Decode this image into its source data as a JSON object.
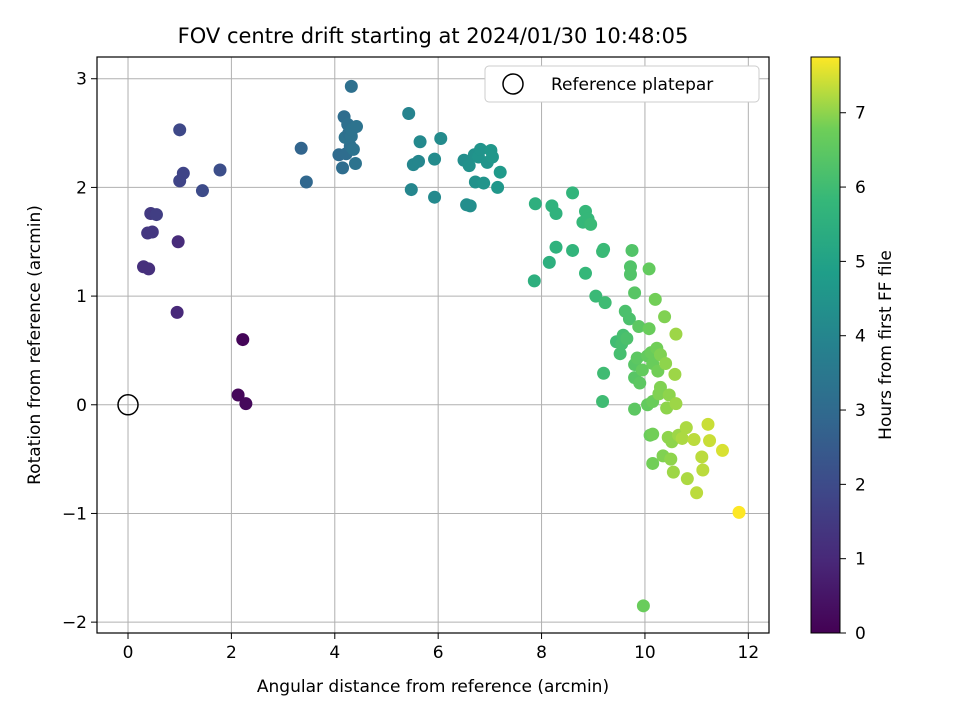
{
  "chart_data": {
    "type": "scatter",
    "title": "FOV centre drift starting at 2024/01/30 10:48:05",
    "xlabel": "Angular distance from reference (arcmin)",
    "ylabel": "Rotation from reference (arcmin)",
    "xlim": [
      -0.6,
      12.4
    ],
    "ylim": [
      -2.1,
      3.2
    ],
    "xticks": [
      0,
      2,
      4,
      6,
      8,
      10,
      12
    ],
    "yticks": [
      -2,
      -1,
      0,
      1,
      2,
      3
    ],
    "ytick_labels": [
      "−2",
      "−1",
      "0",
      "1",
      "2",
      "3"
    ],
    "grid": true,
    "legend": {
      "location": "top-right",
      "entries": [
        "Reference platepar"
      ]
    },
    "reference_point": {
      "label": "Reference platepar",
      "x": 0,
      "y": 0
    },
    "colorbar": {
      "label": "Hours from first FF file",
      "range": [
        0,
        7.75
      ],
      "ticks": [
        0,
        1,
        2,
        3,
        4,
        5,
        6,
        7
      ],
      "colormap": "viridis"
    },
    "points": [
      [
        2.22,
        0.6,
        0.1
      ],
      [
        2.13,
        0.09,
        0.15
      ],
      [
        2.28,
        0.01,
        0.2
      ],
      [
        0.95,
        0.85,
        1.0
      ],
      [
        0.3,
        1.27,
        1.2
      ],
      [
        0.4,
        1.25,
        1.2
      ],
      [
        0.97,
        1.5,
        1.1
      ],
      [
        0.38,
        1.58,
        1.4
      ],
      [
        0.47,
        1.59,
        1.4
      ],
      [
        0.44,
        1.76,
        1.5
      ],
      [
        0.55,
        1.75,
        1.6
      ],
      [
        1.0,
        2.06,
        1.8
      ],
      [
        1.07,
        2.13,
        1.8
      ],
      [
        1.0,
        2.53,
        1.9
      ],
      [
        1.44,
        1.97,
        2.0
      ],
      [
        1.78,
        2.16,
        2.1
      ],
      [
        3.35,
        2.36,
        2.8
      ],
      [
        3.45,
        2.05,
        2.9
      ],
      [
        4.08,
        2.3,
        3.0
      ],
      [
        4.15,
        2.18,
        3.1
      ],
      [
        4.22,
        2.31,
        3.1
      ],
      [
        4.3,
        2.38,
        3.2
      ],
      [
        4.36,
        2.35,
        3.3
      ],
      [
        4.4,
        2.22,
        3.3
      ],
      [
        4.2,
        2.46,
        3.3
      ],
      [
        4.27,
        2.5,
        3.2
      ],
      [
        4.32,
        2.47,
        3.3
      ],
      [
        4.18,
        2.65,
        3.1
      ],
      [
        4.25,
        2.58,
        3.2
      ],
      [
        4.33,
        2.53,
        3.3
      ],
      [
        4.42,
        2.56,
        3.3
      ],
      [
        4.32,
        2.93,
        3.2
      ],
      [
        5.43,
        2.68,
        3.9
      ],
      [
        5.48,
        1.98,
        4.0
      ],
      [
        5.52,
        2.21,
        4.0
      ],
      [
        5.62,
        2.24,
        4.0
      ],
      [
        5.65,
        2.42,
        4.1
      ],
      [
        5.93,
        1.91,
        4.1
      ],
      [
        5.93,
        2.26,
        4.2
      ],
      [
        6.05,
        2.45,
        4.2
      ],
      [
        6.5,
        2.25,
        4.3
      ],
      [
        6.55,
        1.84,
        4.3
      ],
      [
        6.62,
        1.83,
        4.3
      ],
      [
        6.6,
        2.2,
        4.4
      ],
      [
        6.72,
        2.05,
        4.4
      ],
      [
        6.7,
        2.3,
        4.4
      ],
      [
        6.78,
        2.28,
        4.5
      ],
      [
        6.82,
        2.35,
        4.5
      ],
      [
        6.88,
        2.04,
        4.5
      ],
      [
        6.95,
        2.23,
        4.5
      ],
      [
        7.02,
        2.34,
        4.6
      ],
      [
        7.05,
        2.28,
        4.6
      ],
      [
        7.15,
        2.0,
        4.6
      ],
      [
        7.2,
        2.14,
        4.7
      ],
      [
        7.86,
        1.14,
        5.5
      ],
      [
        7.88,
        1.85,
        5.5
      ],
      [
        8.15,
        1.31,
        5.5
      ],
      [
        8.2,
        1.83,
        5.6
      ],
      [
        8.28,
        1.45,
        5.6
      ],
      [
        8.28,
        1.76,
        5.6
      ],
      [
        8.6,
        1.95,
        5.7
      ],
      [
        8.6,
        1.42,
        5.7
      ],
      [
        8.8,
        1.68,
        5.8
      ],
      [
        8.85,
        1.78,
        5.8
      ],
      [
        8.9,
        1.71,
        5.8
      ],
      [
        8.95,
        1.66,
        5.9
      ],
      [
        8.85,
        1.21,
        5.8
      ],
      [
        9.05,
        1.0,
        5.9
      ],
      [
        9.2,
        1.43,
        5.9
      ],
      [
        9.18,
        1.41,
        5.9
      ],
      [
        9.23,
        0.94,
        6.0
      ],
      [
        9.2,
        0.29,
        6.0
      ],
      [
        9.18,
        0.03,
        6.0
      ],
      [
        9.45,
        0.58,
        6.0
      ],
      [
        9.52,
        0.47,
        6.1
      ],
      [
        9.55,
        0.56,
        6.1
      ],
      [
        9.58,
        0.64,
        6.1
      ],
      [
        9.62,
        0.86,
        6.2
      ],
      [
        9.65,
        0.61,
        6.2
      ],
      [
        9.7,
        0.79,
        6.2
      ],
      [
        9.72,
        1.27,
        6.3
      ],
      [
        9.75,
        1.42,
        6.3
      ],
      [
        9.72,
        1.2,
        6.3
      ],
      [
        9.8,
        1.03,
        6.4
      ],
      [
        9.8,
        0.37,
        6.4
      ],
      [
        9.8,
        0.25,
        6.4
      ],
      [
        9.85,
        0.43,
        6.5
      ],
      [
        9.8,
        -0.04,
        6.5
      ],
      [
        9.88,
        0.72,
        6.5
      ],
      [
        9.9,
        0.2,
        6.5
      ],
      [
        9.95,
        0.32,
        6.6
      ],
      [
        9.97,
        -1.85,
        6.7
      ],
      [
        10.05,
        0.45,
        6.6
      ],
      [
        10.05,
        0.0,
        6.6
      ],
      [
        10.08,
        1.25,
        6.6
      ],
      [
        10.08,
        0.7,
        6.7
      ],
      [
        10.1,
        -0.28,
        6.7
      ],
      [
        10.12,
        0.48,
        6.7
      ],
      [
        10.15,
        0.38,
        6.7
      ],
      [
        10.15,
        0.03,
        6.7
      ],
      [
        10.15,
        -0.27,
        6.8
      ],
      [
        10.15,
        -0.54,
        6.8
      ],
      [
        10.2,
        0.97,
        6.8
      ],
      [
        10.23,
        0.52,
        6.8
      ],
      [
        10.25,
        0.31,
        6.8
      ],
      [
        10.27,
        0.1,
        6.9
      ],
      [
        10.3,
        0.46,
        6.9
      ],
      [
        10.3,
        0.16,
        6.9
      ],
      [
        10.35,
        -0.47,
        6.9
      ],
      [
        10.38,
        0.81,
        6.9
      ],
      [
        10.4,
        0.38,
        7.0
      ],
      [
        10.42,
        -0.03,
        7.0
      ],
      [
        10.45,
        -0.3,
        7.0
      ],
      [
        10.47,
        0.09,
        7.0
      ],
      [
        10.5,
        -0.5,
        7.0
      ],
      [
        10.52,
        -0.34,
        7.0
      ],
      [
        10.55,
        -0.62,
        7.1
      ],
      [
        10.58,
        0.28,
        7.1
      ],
      [
        10.6,
        0.65,
        7.1
      ],
      [
        10.6,
        0.01,
        7.1
      ],
      [
        10.65,
        -0.28,
        7.1
      ],
      [
        10.72,
        -0.31,
        7.2
      ],
      [
        10.8,
        -0.21,
        7.2
      ],
      [
        10.82,
        -0.68,
        7.2
      ],
      [
        10.95,
        -0.32,
        7.3
      ],
      [
        11.0,
        -0.81,
        7.3
      ],
      [
        11.1,
        -0.48,
        7.3
      ],
      [
        11.12,
        -0.6,
        7.3
      ],
      [
        11.22,
        -0.18,
        7.4
      ],
      [
        11.25,
        -0.33,
        7.4
      ],
      [
        11.5,
        -0.42,
        7.5
      ],
      [
        11.82,
        -0.99,
        7.75
      ]
    ]
  }
}
